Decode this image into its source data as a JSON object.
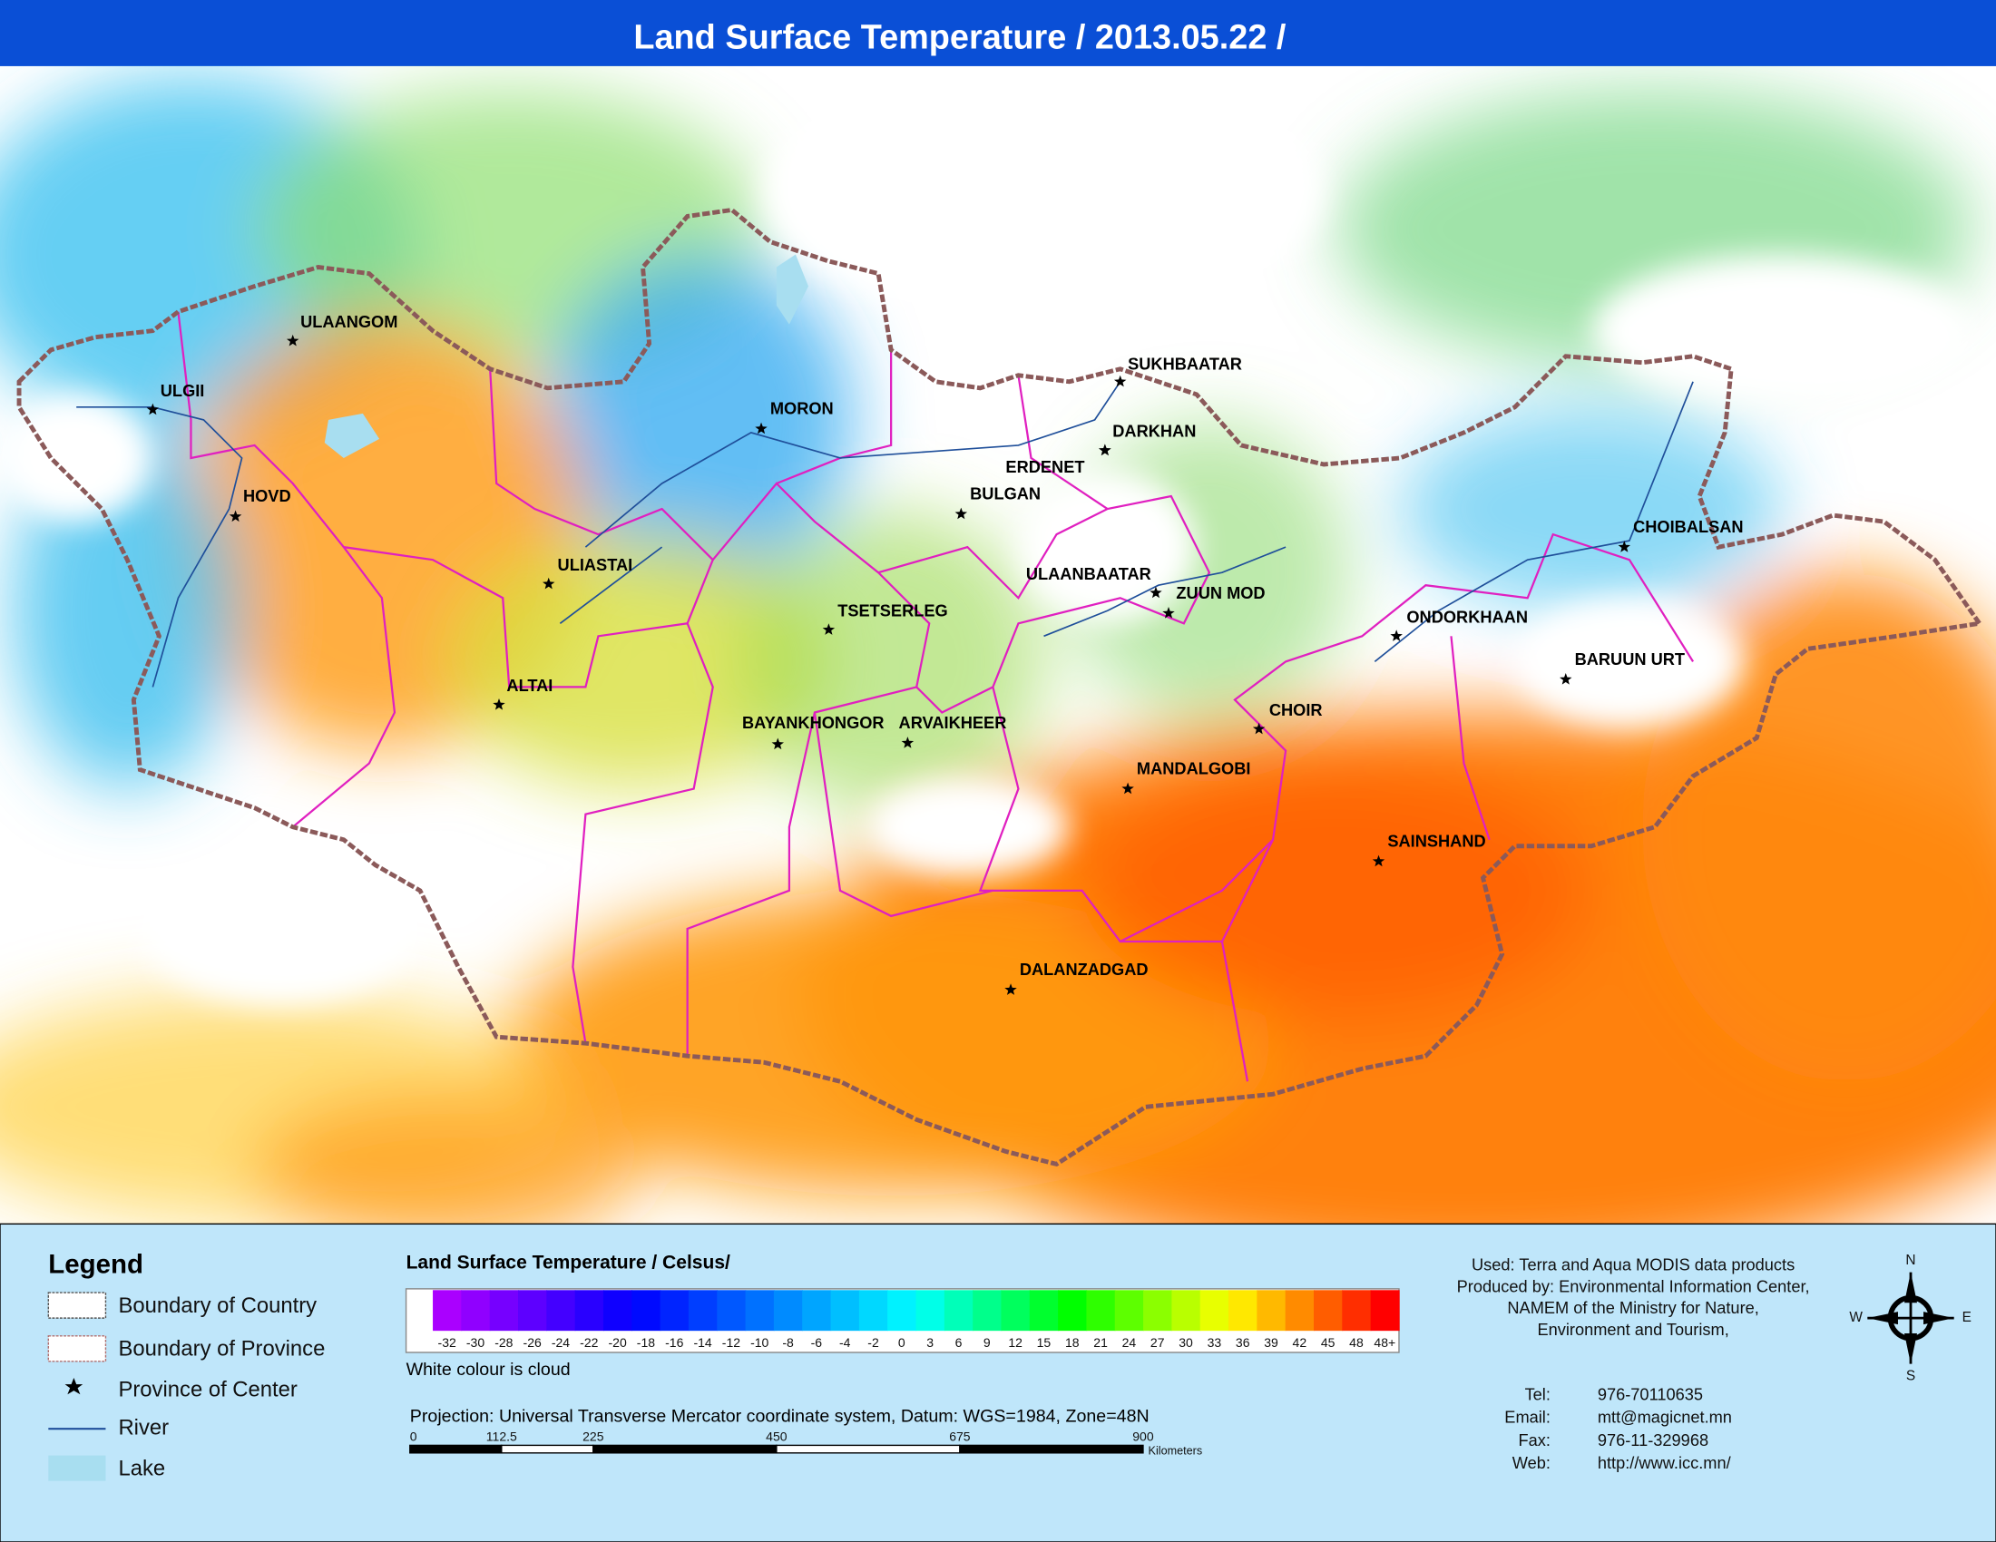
{
  "title": "Land Surface Temperature / 2013.05.22 /",
  "cities": [
    "ULAANGOM",
    "ULGII",
    "HOVD",
    "MORON",
    "ULIASTAI",
    "ALTAI",
    "TSETSERLEG",
    "BAYANKHONGOR",
    "ARVAIKHEER",
    "BULGAN",
    "ERDENET",
    "DARKHAN",
    "SUKHBAATAR",
    "ULAANBAATAR",
    "ZUUN MOD",
    "CHOIR",
    "MANDALGOBI",
    "SAINSHAND",
    "DALANZADGAD",
    "ONDORKHAAN",
    "CHOIBALSAN",
    "BARUUN URT"
  ],
  "legend": {
    "title": "Legend",
    "items": [
      "Boundary of Country",
      "Boundary of Province",
      "Province of Center",
      "River",
      "Lake"
    ]
  },
  "colorbar": {
    "title": "Land Surface Temperature / Celsus/",
    "labels": [
      "-32",
      "-30",
      "-28",
      "-26",
      "-24",
      "-22",
      "-20",
      "-18",
      "-16",
      "-14",
      "-12",
      "-10",
      "-8",
      "-6",
      "-4",
      "-2",
      "0",
      "3",
      "6",
      "9",
      "12",
      "15",
      "18",
      "21",
      "24",
      "27",
      "30",
      "33",
      "36",
      "39",
      "42",
      "45",
      "48",
      "48+"
    ],
    "note": "White colour is cloud"
  },
  "projection": "Projection: Universal Transverse Mercator coordinate system, Datum: WGS=1984, Zone=48N",
  "scale": {
    "labels": [
      "0",
      "112.5",
      "225",
      "450",
      "675",
      "900"
    ],
    "unit": "Kilometers"
  },
  "credits": [
    "Used: Terra and Aqua MODIS data products",
    "Produced by: Environmental Information Center,",
    "NAMEM of the Ministry for Nature,",
    "Environment and Tourism,"
  ],
  "contacts": [
    [
      "Tel:",
      "976-70110635"
    ],
    [
      "Email:",
      "mtt@magicnet.mn"
    ],
    [
      "Fax:",
      "976-11-329968"
    ],
    [
      "Web:",
      "http://www.icc.mn/"
    ]
  ],
  "compass": [
    "N",
    "E",
    "S",
    "W"
  ]
}
